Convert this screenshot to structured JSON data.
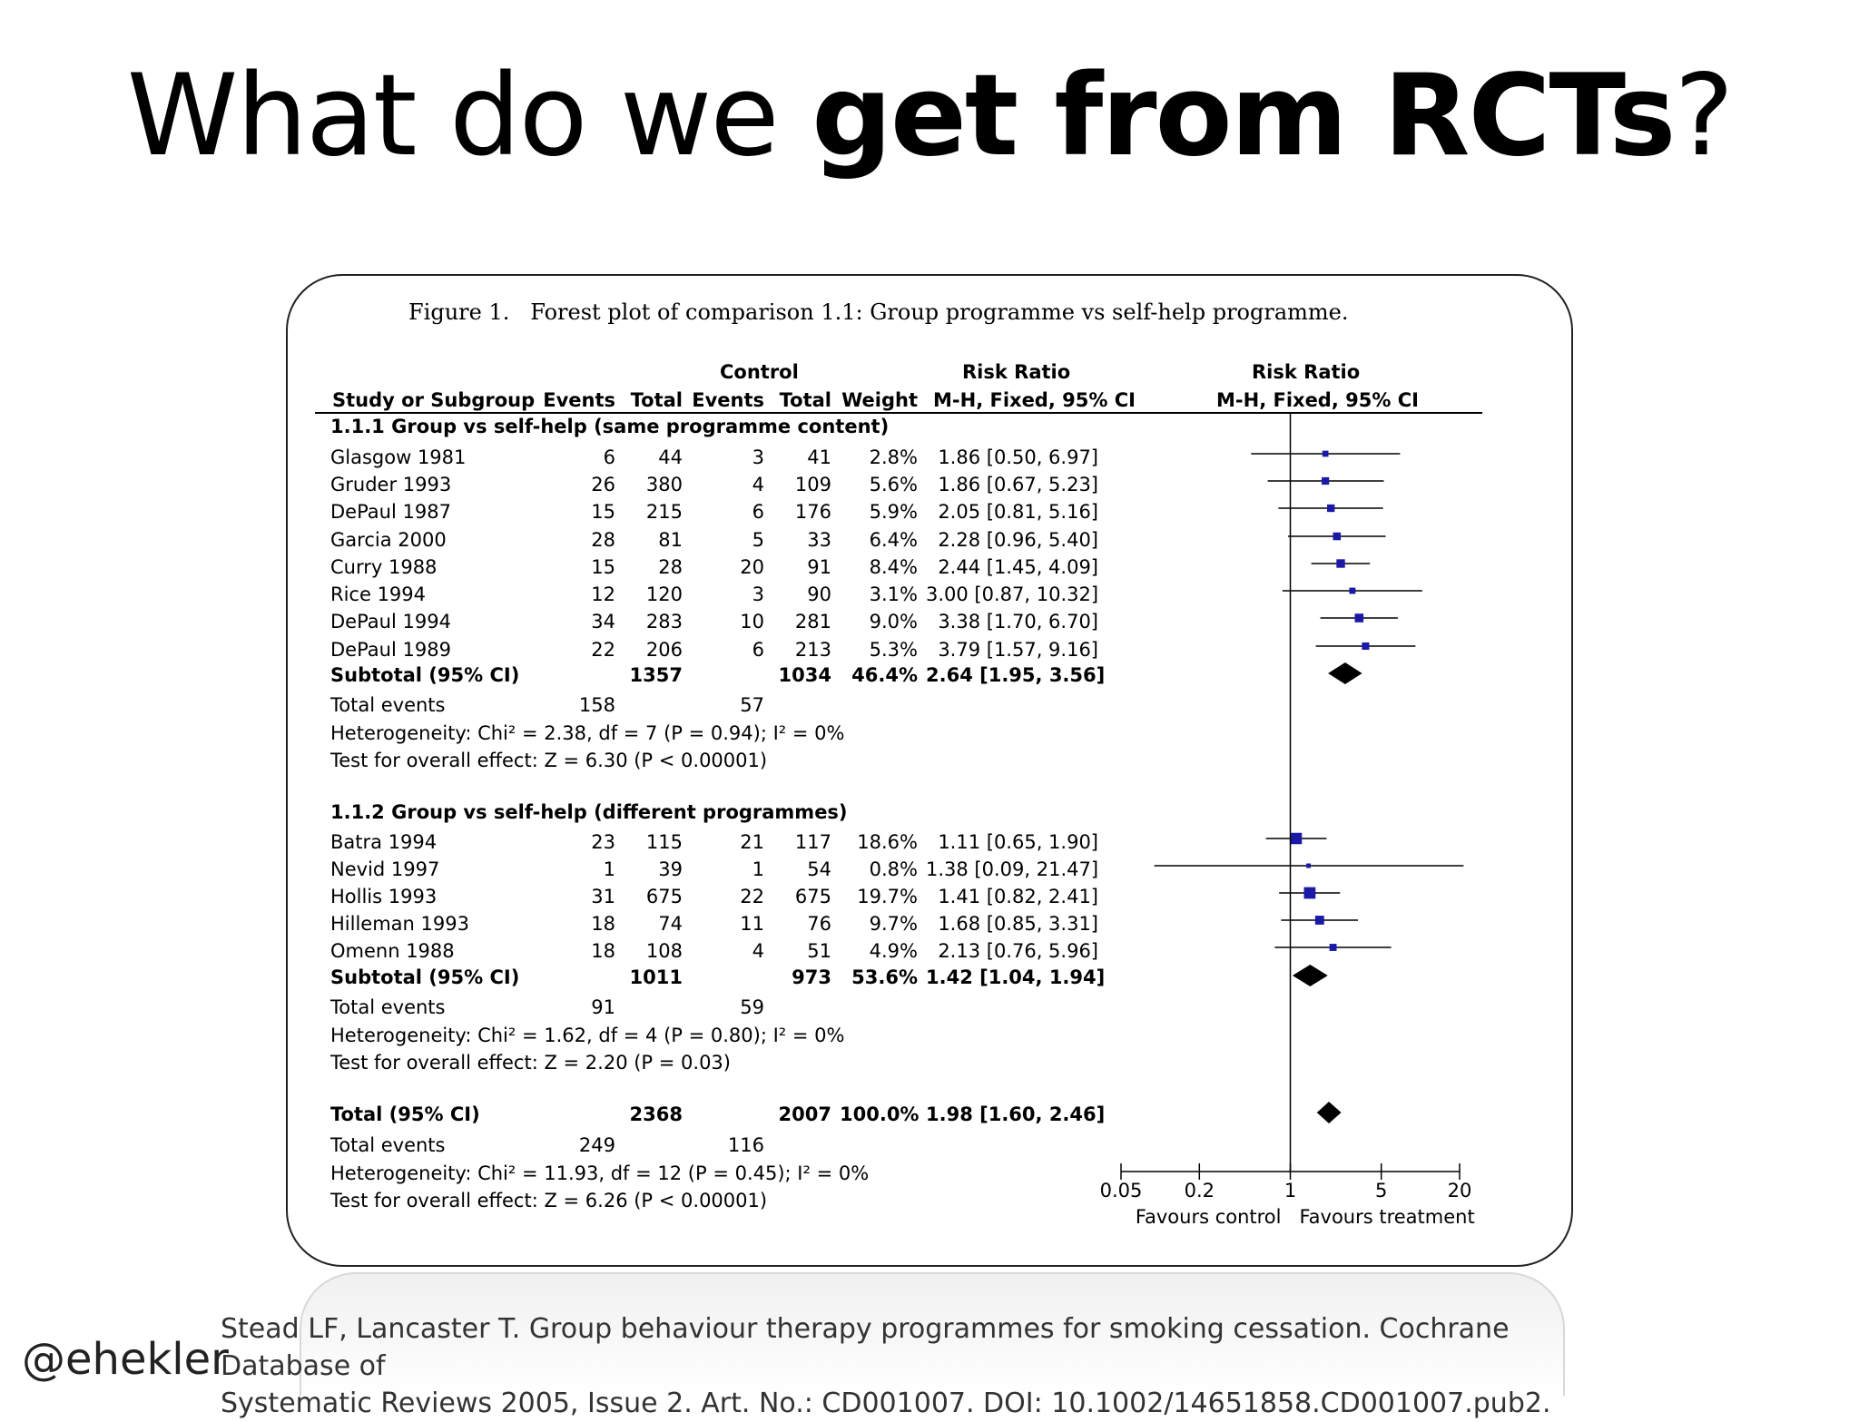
{
  "slide": {
    "title_regular": "What do we ",
    "title_bold": "get from RCTs",
    "title_end": "?",
    "handle": "@ehekler",
    "citation_line1": "Stead LF, Lancaster T. Group behaviour therapy programmes for smoking cessation. Cochrane Database of",
    "citation_line2": "Systematic Reviews 2005, Issue 2. Art. No.: CD001007. DOI: 10.1002/14651858.CD001007.pub2."
  },
  "figure": {
    "caption": "Figure 1.   Forest plot of comparison 1.1: Group programme vs self-help programme.",
    "headers": {
      "control": "Control",
      "rr_top": "Risk Ratio",
      "plot_top": "Risk Ratio",
      "study": "Study or Subgroup",
      "events1": "Events",
      "total1": "Total",
      "events2": "Events",
      "total2": "Total",
      "weight": "Weight",
      "rr_method": "M-H, Fixed, 95% CI",
      "plot_method": "M-H, Fixed, 95% CI"
    }
  },
  "chart_data": {
    "type": "forest",
    "scale": "log",
    "xlim": [
      0.05,
      20
    ],
    "ticks": [
      {
        "value": 0.05,
        "label": "0.05"
      },
      {
        "value": 0.2,
        "label": "0.2"
      },
      {
        "value": 1,
        "label": "1"
      },
      {
        "value": 5,
        "label": "5"
      },
      {
        "value": 20,
        "label": "20"
      }
    ],
    "favours_left": "Favours control",
    "favours_right": "Favours treatment",
    "groups": [
      {
        "title": "1.1.1 Group vs self-help (same programme content)",
        "studies": [
          {
            "study": "Glasgow 1981",
            "e1": "6",
            "t1": "44",
            "e2": "3",
            "t2": "41",
            "weight": "2.8%",
            "ci_text": "1.86 [0.50, 6.97]",
            "rr": 1.86,
            "lo": 0.5,
            "hi": 6.97,
            "w": 2.8
          },
          {
            "study": "Gruder 1993",
            "e1": "26",
            "t1": "380",
            "e2": "4",
            "t2": "109",
            "weight": "5.6%",
            "ci_text": "1.86 [0.67, 5.23]",
            "rr": 1.86,
            "lo": 0.67,
            "hi": 5.23,
            "w": 5.6
          },
          {
            "study": "DePaul 1987",
            "e1": "15",
            "t1": "215",
            "e2": "6",
            "t2": "176",
            "weight": "5.9%",
            "ci_text": "2.05 [0.81, 5.16]",
            "rr": 2.05,
            "lo": 0.81,
            "hi": 5.16,
            "w": 5.9
          },
          {
            "study": "Garcia 2000",
            "e1": "28",
            "t1": "81",
            "e2": "5",
            "t2": "33",
            "weight": "6.4%",
            "ci_text": "2.28 [0.96, 5.40]",
            "rr": 2.28,
            "lo": 0.96,
            "hi": 5.4,
            "w": 6.4
          },
          {
            "study": "Curry 1988",
            "e1": "15",
            "t1": "28",
            "e2": "20",
            "t2": "91",
            "weight": "8.4%",
            "ci_text": "2.44 [1.45, 4.09]",
            "rr": 2.44,
            "lo": 1.45,
            "hi": 4.09,
            "w": 8.4
          },
          {
            "study": "Rice 1994",
            "e1": "12",
            "t1": "120",
            "e2": "3",
            "t2": "90",
            "weight": "3.1%",
            "ci_text": "3.00 [0.87, 10.32]",
            "rr": 3.0,
            "lo": 0.87,
            "hi": 10.32,
            "w": 3.1
          },
          {
            "study": "DePaul 1994",
            "e1": "34",
            "t1": "283",
            "e2": "10",
            "t2": "281",
            "weight": "9.0%",
            "ci_text": "3.38 [1.70, 6.70]",
            "rr": 3.38,
            "lo": 1.7,
            "hi": 6.7,
            "w": 9.0
          },
          {
            "study": "DePaul 1989",
            "e1": "22",
            "t1": "206",
            "e2": "6",
            "t2": "213",
            "weight": "5.3%",
            "ci_text": "3.79 [1.57, 9.16]",
            "rr": 3.79,
            "lo": 1.57,
            "hi": 9.16,
            "w": 5.3
          }
        ],
        "subtotal": {
          "label": "Subtotal (95% CI)",
          "t1": "1357",
          "t2": "1034",
          "weight": "46.4%",
          "ci_text": "2.64 [1.95, 3.56]",
          "rr": 2.64,
          "lo": 1.95,
          "hi": 3.56
        },
        "total_events": {
          "label": "Total events",
          "e1": "158",
          "e2": "57"
        },
        "heterogeneity": "Heterogeneity: Chi² = 2.38, df = 7 (P = 0.94); I² = 0%",
        "overall_effect": "Test for overall effect: Z = 6.30 (P < 0.00001)"
      },
      {
        "title": "1.1.2 Group vs self-help (different programmes)",
        "studies": [
          {
            "study": "Batra 1994",
            "e1": "23",
            "t1": "115",
            "e2": "21",
            "t2": "117",
            "weight": "18.6%",
            "ci_text": "1.11 [0.65, 1.90]",
            "rr": 1.11,
            "lo": 0.65,
            "hi": 1.9,
            "w": 18.6
          },
          {
            "study": "Nevid 1997",
            "e1": "1",
            "t1": "39",
            "e2": "1",
            "t2": "54",
            "weight": "0.8%",
            "ci_text": "1.38 [0.09, 21.47]",
            "rr": 1.38,
            "lo": 0.09,
            "hi": 21.47,
            "w": 0.8
          },
          {
            "study": "Hollis 1993",
            "e1": "31",
            "t1": "675",
            "e2": "22",
            "t2": "675",
            "weight": "19.7%",
            "ci_text": "1.41 [0.82, 2.41]",
            "rr": 1.41,
            "lo": 0.82,
            "hi": 2.41,
            "w": 19.7
          },
          {
            "study": "Hilleman 1993",
            "e1": "18",
            "t1": "74",
            "e2": "11",
            "t2": "76",
            "weight": "9.7%",
            "ci_text": "1.68 [0.85, 3.31]",
            "rr": 1.68,
            "lo": 0.85,
            "hi": 3.31,
            "w": 9.7
          },
          {
            "study": "Omenn 1988",
            "e1": "18",
            "t1": "108",
            "e2": "4",
            "t2": "51",
            "weight": "4.9%",
            "ci_text": "2.13 [0.76, 5.96]",
            "rr": 2.13,
            "lo": 0.76,
            "hi": 5.96,
            "w": 4.9
          }
        ],
        "subtotal": {
          "label": "Subtotal (95% CI)",
          "t1": "1011",
          "t2": "973",
          "weight": "53.6%",
          "ci_text": "1.42 [1.04, 1.94]",
          "rr": 1.42,
          "lo": 1.04,
          "hi": 1.94
        },
        "total_events": {
          "label": "Total events",
          "e1": "91",
          "e2": "59"
        },
        "heterogeneity": "Heterogeneity: Chi² = 1.62, df = 4 (P = 0.80); I² = 0%",
        "overall_effect": "Test for overall effect: Z = 2.20 (P = 0.03)"
      }
    ],
    "overall": {
      "label": "Total (95% CI)",
      "t1": "2368",
      "t2": "2007",
      "weight": "100.0%",
      "ci_text": "1.98 [1.60, 2.46]",
      "rr": 1.98,
      "lo": 1.6,
      "hi": 2.46
    },
    "overall_events": {
      "label": "Total events",
      "e1": "249",
      "e2": "116"
    },
    "overall_heterogeneity": "Heterogeneity: Chi² = 11.93, df = 12 (P = 0.45); I² = 0%",
    "overall_effect": "Test for overall effect: Z = 6.26 (P < 0.00001)"
  }
}
